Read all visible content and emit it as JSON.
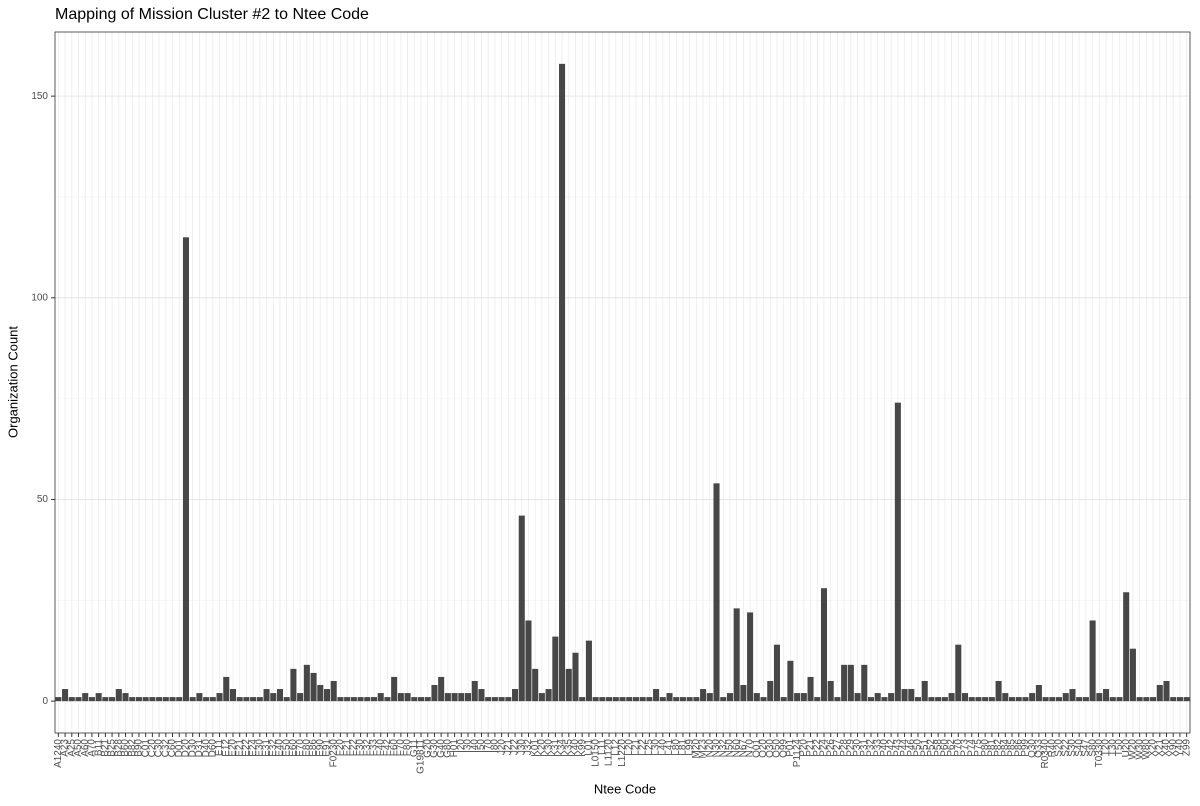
{
  "chart_data": {
    "type": "bar",
    "title": "Mapping of Mission Cluster #2 to Ntee Code",
    "xlabel": "Ntee Code",
    "ylabel": "Organization Count",
    "categories": [
      "A1240",
      "A23",
      "A25",
      "A50",
      "A60",
      "A70",
      "B11",
      "B21",
      "B25",
      "B28",
      "B60",
      "B82",
      "B90",
      "C01",
      "C20",
      "C30",
      "C32",
      "C60",
      "D01",
      "D20",
      "D30",
      "D31",
      "D40",
      "D60",
      "E11",
      "E12",
      "E20",
      "E21",
      "E22",
      "E24",
      "E30",
      "E31",
      "E32",
      "E40",
      "E50",
      "E60",
      "E70",
      "E80",
      "E86",
      "E90",
      "E91",
      "F0230",
      "F20",
      "F21",
      "F22",
      "F30",
      "F32",
      "F33",
      "F40",
      "F42",
      "F60",
      "F70",
      "F80",
      "G11",
      "G19811",
      "G20",
      "G30",
      "G40",
      "G80",
      "H01",
      "I20",
      "I30",
      "I40",
      "I50",
      "I70",
      "I80",
      "J20",
      "J21",
      "J22",
      "J30",
      "J32",
      "K01",
      "K20",
      "K30",
      "K31",
      "K34",
      "K35",
      "K40",
      "K99",
      "L01",
      "L0150",
      "L11",
      "L1120",
      "L12",
      "L1220",
      "L20",
      "L21",
      "L22",
      "L25",
      "L30",
      "L40",
      "L41",
      "L80",
      "L81",
      "L99",
      "M20",
      "M23",
      "N20",
      "N30",
      "N32",
      "N50",
      "N60",
      "N67",
      "N70",
      "O01",
      "O20",
      "O30",
      "O50",
      "O99",
      "P01",
      "P1124",
      "P20",
      "P21",
      "P22",
      "P24",
      "P26",
      "P27",
      "P28",
      "P29",
      "P30",
      "P31",
      "P32",
      "P33",
      "P40",
      "P42",
      "P43",
      "P44",
      "P46",
      "P50",
      "P51",
      "P52",
      "P58",
      "P60",
      "P62",
      "P70",
      "P73",
      "P74",
      "P75",
      "P80",
      "P81",
      "P82",
      "P84",
      "P85",
      "P86",
      "P99",
      "Q30",
      "Q33",
      "R0340",
      "R40",
      "S20",
      "S22",
      "S30",
      "S40",
      "S47",
      "S80",
      "T0330",
      "T20",
      "T30",
      "T50",
      "U20",
      "W20",
      "W30",
      "W80",
      "X20",
      "X21",
      "X40",
      "X90",
      "Y40",
      "Z99"
    ],
    "values": [
      1,
      3,
      1,
      1,
      2,
      1,
      2,
      1,
      1,
      3,
      2,
      1,
      1,
      1,
      1,
      1,
      1,
      1,
      1,
      115,
      1,
      2,
      1,
      1,
      2,
      6,
      3,
      1,
      1,
      1,
      1,
      3,
      2,
      3,
      1,
      8,
      2,
      9,
      7,
      4,
      3,
      5,
      1,
      1,
      1,
      1,
      1,
      1,
      2,
      1,
      6,
      2,
      2,
      1,
      1,
      1,
      4,
      6,
      2,
      2,
      2,
      2,
      5,
      3,
      1,
      1,
      1,
      1,
      3,
      46,
      20,
      8,
      2,
      3,
      16,
      158,
      8,
      12,
      1,
      15,
      1,
      1,
      1,
      1,
      1,
      1,
      1,
      1,
      1,
      3,
      1,
      2,
      1,
      1,
      1,
      1,
      3,
      2,
      54,
      1,
      2,
      23,
      4,
      22,
      2,
      1,
      5,
      14,
      1,
      10,
      2,
      2,
      6,
      1,
      28,
      5,
      1,
      9,
      9,
      2,
      9,
      1,
      2,
      1,
      2,
      74,
      3,
      3,
      1,
      5,
      1,
      1,
      1,
      2,
      14,
      2,
      1,
      1,
      1,
      1,
      5,
      2,
      1,
      1,
      1,
      2,
      4,
      1,
      1,
      1,
      2,
      3,
      1,
      1,
      20,
      2,
      3,
      1,
      1,
      27,
      13,
      1,
      1,
      1,
      4,
      5,
      1,
      1,
      1
    ],
    "color": "#474747",
    "ylim": [
      -7.9,
      165.9
    ],
    "yticks": [
      0,
      50,
      100,
      150
    ],
    "yminorticks": [
      25,
      75,
      125
    ],
    "grid": true
  }
}
